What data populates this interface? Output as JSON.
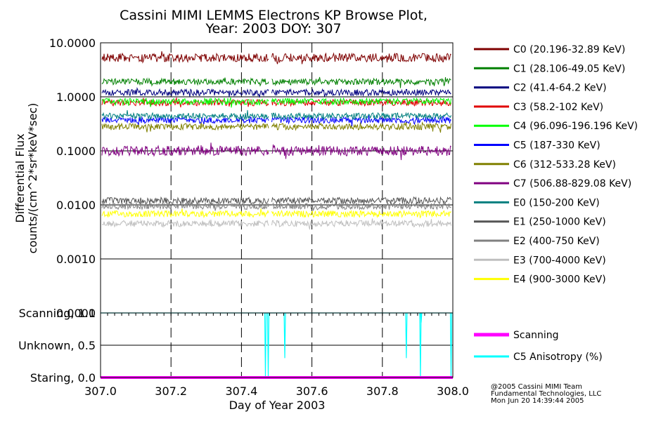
{
  "colors": {
    "background": "#ffffff",
    "frame": "#000000",
    "C0": "#7f0000",
    "C1": "#008000",
    "C2": "#00007f",
    "C3": "#e00000",
    "C4": "#00ff00",
    "C5": "#0000ff",
    "C6": "#808000",
    "C7": "#800080",
    "E0": "#007f7f",
    "E1": "#555555",
    "E2": "#808080",
    "E3": "#bfbfbf",
    "E4": "#ffff00",
    "scanning": "#ff00ff",
    "anisotropy": "#00ffff"
  },
  "chart_data": [
    {
      "type": "line",
      "title": "Cassini MIMI LEMMS Electrons KP Browse Plot,",
      "subtitle": "Year: 2003 DOY: 307",
      "xlabel": "Day of Year 2003",
      "ylabel_line1": "Differential Flux",
      "ylabel_line2": "counts/(cm^2*sr*keV*sec)",
      "yscale": "log",
      "xlim": [
        307.0,
        308.0
      ],
      "ylim": [
        0.0001,
        10.0
      ],
      "x_ticks": [
        307.0,
        307.2,
        307.4,
        307.6,
        307.8,
        308.0
      ],
      "x_tick_labels": [
        "307.0",
        "307.2",
        "307.4",
        "307.6",
        "307.8",
        "308.0"
      ],
      "y_ticks": [
        10.0,
        1.0,
        0.1,
        0.01,
        0.001,
        0.0001
      ],
      "y_tick_labels": [
        "10.0000",
        "1.0000",
        "0.1000",
        "0.0100",
        "0.0010",
        "0.0001"
      ],
      "data_gap": [
        307.478,
        307.486
      ],
      "series": [
        {
          "name": "C0",
          "legend": "C0 (20.196-32.89 KeV)",
          "approx_level": 5.3
        },
        {
          "name": "C1",
          "legend": "C1 (28.106-49.05 KeV)",
          "approx_level": 1.9
        },
        {
          "name": "C2",
          "legend": "C2 (41.4-64.2 KeV)",
          "approx_level": 1.2
        },
        {
          "name": "C3",
          "legend": "C3 (58.2-102 KeV)",
          "approx_level": 0.78
        },
        {
          "name": "C4",
          "legend": "C4 (96.096-196.196 KeV)",
          "approx_level": 0.82
        },
        {
          "name": "C5",
          "legend": "C5 (187-330 KeV)",
          "approx_level": 0.37
        },
        {
          "name": "C6",
          "legend": "C6 (312-533.28 KeV)",
          "approx_level": 0.28
        },
        {
          "name": "C7",
          "legend": "C7 (506.88-829.08 KeV)",
          "approx_level": 0.1
        },
        {
          "name": "E0",
          "legend": "E0 (150-200 KeV)",
          "approx_level": 0.44
        },
        {
          "name": "E1",
          "legend": "E1 (250-1000 KeV)",
          "approx_level": 0.012
        },
        {
          "name": "E2",
          "legend": "E2 (400-750 KeV)",
          "approx_level": 0.0095
        },
        {
          "name": "E3",
          "legend": "E3 (700-4000 KeV)",
          "approx_level": 0.0045
        },
        {
          "name": "E4",
          "legend": "E4 (900-3000 KeV)",
          "approx_level": 0.0068
        }
      ]
    },
    {
      "type": "line",
      "xlim": [
        307.0,
        308.0
      ],
      "ylim": [
        0.0,
        1.0
      ],
      "y_ticks": [
        1.0,
        0.5,
        0.0
      ],
      "y_tick_labels": [
        "Scanning, 1.0",
        "Unknown, 0.5",
        "Staring, 0.0"
      ],
      "series": [
        {
          "name": "scanning",
          "legend": "Scanning",
          "constant_value": 0.0
        },
        {
          "name": "anisotropy",
          "legend": "C5 Anisotropy (%)",
          "baseline": 1.0,
          "dips": [
            {
              "x": 307.468,
              "y": 0.0
            },
            {
              "x": 307.476,
              "y": 0.0
            },
            {
              "x": 307.523,
              "y": 0.3
            },
            {
              "x": 307.868,
              "y": 0.3
            },
            {
              "x": 307.908,
              "y": 0.0
            },
            {
              "x": 307.91,
              "y": 0.85
            },
            {
              "x": 307.995,
              "y": 0.0
            }
          ]
        }
      ]
    }
  ],
  "credits": [
    "@2005 Cassini MIMI Team",
    "Fundamental Technologies, LLC",
    "Mon Jun 20 14:39:44 2005"
  ]
}
